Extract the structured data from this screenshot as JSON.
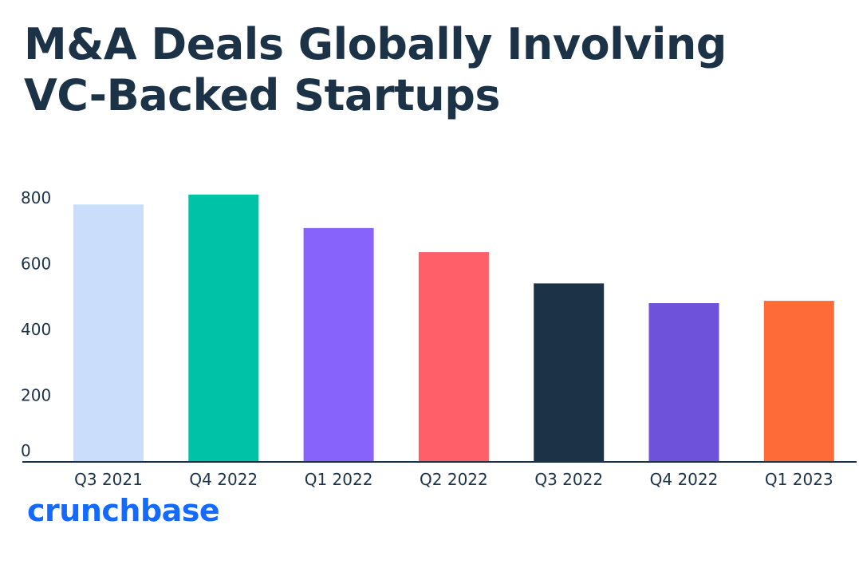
{
  "chart_data": {
    "type": "bar",
    "title_lines": [
      "M&A Deals Globally Involving",
      "VC-Backed Startups"
    ],
    "categories": [
      "Q3 2021",
      "Q4 2022",
      "Q1 2022",
      "Q2 2022",
      "Q3 2022",
      "Q4 2022",
      "Q1 2023"
    ],
    "values": [
      780,
      810,
      708,
      635,
      540,
      480,
      487
    ],
    "colors": [
      "#cadefc",
      "#00c2a6",
      "#8763fb",
      "#ff5f68",
      "#1c3347",
      "#6e52da",
      "#ff6b38"
    ],
    "yticks": [
      0,
      200,
      400,
      600,
      800
    ],
    "ylim": [
      0,
      820
    ],
    "xlabel": "",
    "ylabel": "",
    "grid": false,
    "legend": "none",
    "axis_color": "#1c3347"
  },
  "brand": {
    "logo_text": "crunchbase"
  }
}
